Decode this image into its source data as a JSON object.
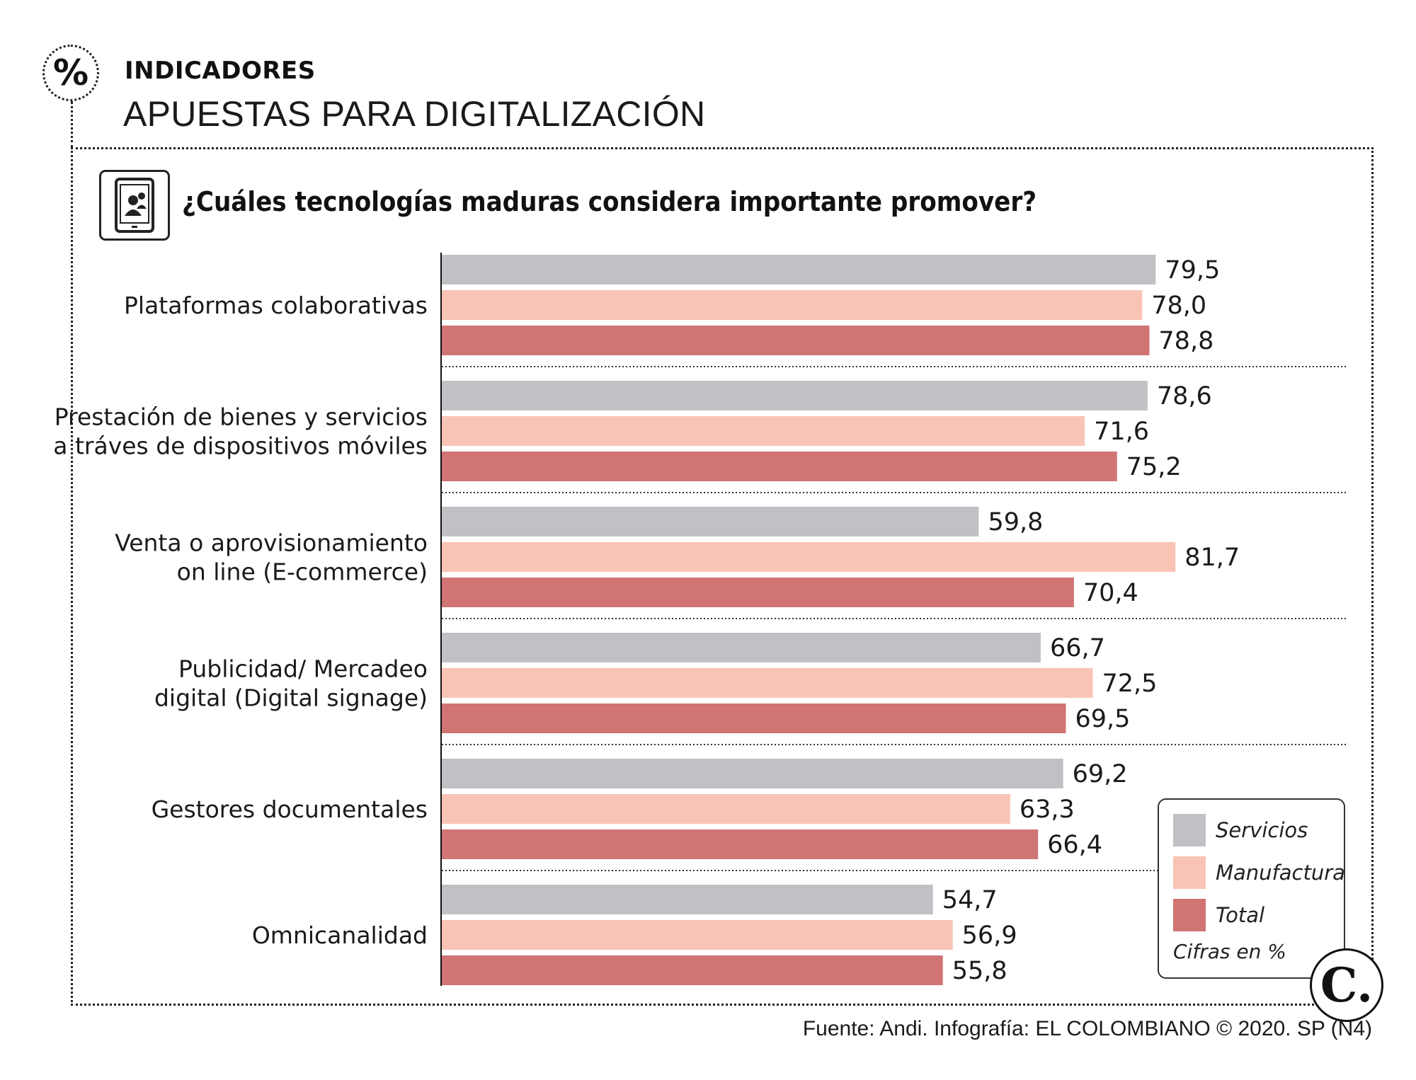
{
  "header": {
    "badge_symbol": "%",
    "kicker": "INDICADORES",
    "title": "APUESTAS PARA DIGITALIZACIÓN"
  },
  "question": {
    "icon": "tablet-users-icon",
    "text": "¿Cuáles tecnologías maduras considera importante promover?"
  },
  "chart_data": {
    "type": "bar",
    "orientation": "horizontal",
    "title": "¿Cuáles tecnologías maduras considera importante promover?",
    "unit": "Cifras en %",
    "categories": [
      [
        "Plataformas colaborativas"
      ],
      [
        "Prestación de bienes y servicios",
        "a tráves de dispositivos móviles"
      ],
      [
        "Venta o aprovisionamiento",
        "on line (E-commerce)"
      ],
      [
        "Publicidad/ Mercadeo",
        "digital (Digital signage)"
      ],
      [
        "Gestores documentales"
      ],
      [
        "Omnicanalidad"
      ]
    ],
    "series": [
      {
        "name": "Servicios",
        "color": "#c0c1c5",
        "values": [
          79.5,
          78.6,
          59.8,
          66.7,
          69.2,
          54.7
        ],
        "labels": [
          "79,5",
          "78,6",
          "59,8",
          "66,7",
          "69,2",
          "54,7"
        ]
      },
      {
        "name": "Manufactura",
        "color": "#f9c4b5",
        "values": [
          78.0,
          71.6,
          81.7,
          72.5,
          63.3,
          56.9
        ],
        "labels": [
          "78,0",
          "71,6",
          "81,7",
          "72,5",
          "63,3",
          "56,9"
        ]
      },
      {
        "name": "Total",
        "color": "#d07474",
        "values": [
          78.8,
          75.2,
          70.4,
          69.5,
          66.4,
          55.8
        ],
        "labels": [
          "78,8",
          "75,2",
          "70,4",
          "69,5",
          "66,4",
          "55,8"
        ]
      }
    ],
    "xlim": [
      0,
      100
    ],
    "grid": false,
    "legend_position": "bottom-right"
  },
  "legend": {
    "note": "Cifras en %"
  },
  "logo": {
    "letter": "C."
  },
  "footer": {
    "source": "Fuente: Andi. Infografía: EL COLOMBIANO © 2020. SP (N4)"
  }
}
